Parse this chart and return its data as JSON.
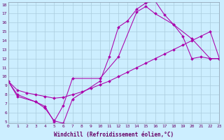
{
  "xlabel": "Windchill (Refroidissement éolien,°C)",
  "bg_color": "#cceeff",
  "grid_color": "#aaccdd",
  "line_color": "#aa00aa",
  "xlim": [
    0,
    23
  ],
  "ylim": [
    5,
    18
  ],
  "xticks": [
    0,
    1,
    2,
    3,
    4,
    5,
    6,
    7,
    8,
    9,
    10,
    11,
    12,
    13,
    14,
    15,
    16,
    17,
    18,
    19,
    20,
    21,
    22,
    23
  ],
  "yticks": [
    5,
    6,
    7,
    8,
    9,
    10,
    11,
    12,
    13,
    14,
    15,
    16,
    17,
    18
  ],
  "series": [
    {
      "x": [
        0,
        1,
        3,
        4,
        5,
        6,
        7,
        10,
        11,
        12,
        13,
        14,
        15,
        16,
        17,
        18,
        19,
        20,
        21,
        22,
        23
      ],
      "y": [
        9.5,
        8.0,
        7.2,
        6.5,
        5.1,
        4.8,
        7.5,
        9.5,
        12.2,
        15.5,
        16.2,
        17.5,
        18.2,
        18.4,
        16.9,
        15.8,
        14.5,
        12.0,
        12.2,
        12.0,
        12.0
      ]
    },
    {
      "x": [
        0,
        1,
        2,
        3,
        4,
        5,
        6,
        7,
        8,
        9,
        10,
        11,
        12,
        13,
        14,
        15,
        16,
        17,
        18,
        19,
        20,
        21,
        22,
        23
      ],
      "y": [
        9.5,
        8.5,
        8.2,
        8.0,
        7.8,
        7.6,
        7.7,
        8.0,
        8.3,
        8.7,
        9.1,
        9.5,
        10.0,
        10.5,
        11.0,
        11.5,
        12.0,
        12.5,
        13.0,
        13.5,
        14.0,
        14.5,
        15.0,
        12.0
      ]
    },
    {
      "x": [
        0,
        1,
        3,
        4,
        5,
        6,
        7,
        10,
        12,
        14,
        15,
        16,
        18,
        20,
        22,
        23
      ],
      "y": [
        9.5,
        7.8,
        7.2,
        6.7,
        5.0,
        6.8,
        9.8,
        9.8,
        12.2,
        17.2,
        17.8,
        17.0,
        15.8,
        14.2,
        12.0,
        12.0
      ]
    }
  ]
}
